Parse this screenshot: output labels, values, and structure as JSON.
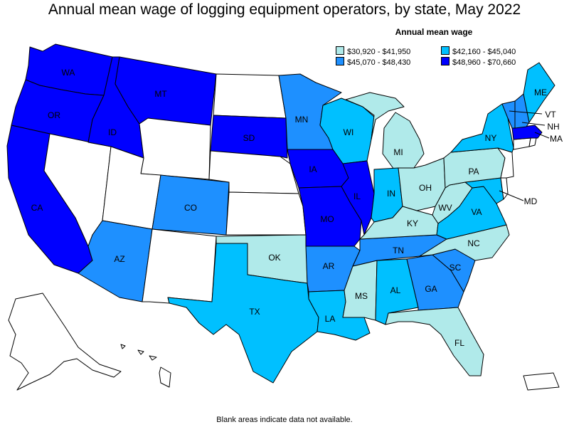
{
  "title": "Annual mean wage of logging equipment operators, by state, May 2022",
  "legend": {
    "title": "Annual mean wage",
    "items": [
      {
        "label": "$30,920 - $41,950",
        "color": "#b0eaea"
      },
      {
        "label": "$42,160 - $45,040",
        "color": "#00c0ff"
      },
      {
        "label": "$45,070 - $48,430",
        "color": "#1e90ff"
      },
      {
        "label": "$48,960 - $70,660",
        "color": "#0000ff"
      }
    ]
  },
  "footnote": "Blank areas indicate data not available.",
  "states": {
    "WA": {
      "label": "WA",
      "tier": 3
    },
    "OR": {
      "label": "OR",
      "tier": 3
    },
    "CA": {
      "label": "CA",
      "tier": 3
    },
    "ID": {
      "label": "ID",
      "tier": 3
    },
    "MT": {
      "label": "MT",
      "tier": 3
    },
    "SD": {
      "label": "SD",
      "tier": 3
    },
    "IA": {
      "label": "IA",
      "tier": 3
    },
    "MO": {
      "label": "MO",
      "tier": 3
    },
    "IL": {
      "label": "IL",
      "tier": 3
    },
    "MA": {
      "label": "MA",
      "tier": 3
    },
    "CO": {
      "label": "CO",
      "tier": 2
    },
    "AZ": {
      "label": "AZ",
      "tier": 2
    },
    "MN": {
      "label": "MN",
      "tier": 2
    },
    "AR": {
      "label": "AR",
      "tier": 2
    },
    "TN": {
      "label": "TN",
      "tier": 2
    },
    "GA": {
      "label": "GA",
      "tier": 2
    },
    "SC": {
      "label": "SC",
      "tier": 2
    },
    "VT": {
      "label": "VT",
      "tier": 2
    },
    "NH": {
      "label": "NH",
      "tier": 2
    },
    "WI": {
      "label": "WI",
      "tier": 1
    },
    "IN": {
      "label": "IN",
      "tier": 1
    },
    "NY": {
      "label": "NY",
      "tier": 1
    },
    "VA": {
      "label": "VA",
      "tier": 1
    },
    "TX": {
      "label": "TX",
      "tier": 1
    },
    "LA": {
      "label": "LA",
      "tier": 1
    },
    "AL": {
      "label": "AL",
      "tier": 1
    },
    "ME": {
      "label": "ME",
      "tier": 1
    },
    "MD": {
      "label": "MD",
      "tier": 1
    },
    "MI": {
      "label": "MI",
      "tier": 0
    },
    "OH": {
      "label": "OH",
      "tier": 0
    },
    "KY": {
      "label": "KY",
      "tier": 0
    },
    "WV": {
      "label": "WV",
      "tier": 0
    },
    "PA": {
      "label": "PA",
      "tier": 0
    },
    "NC": {
      "label": "NC",
      "tier": 0
    },
    "MS": {
      "label": "MS",
      "tier": 0
    },
    "FL": {
      "label": "FL",
      "tier": 0
    },
    "OK": {
      "label": "OK",
      "tier": 0
    },
    "NV": {
      "label": "",
      "tier": -1
    },
    "UT": {
      "label": "",
      "tier": -1
    },
    "WY": {
      "label": "",
      "tier": -1
    },
    "NM": {
      "label": "",
      "tier": -1
    },
    "ND": {
      "label": "",
      "tier": -1
    },
    "NE": {
      "label": "",
      "tier": -1
    },
    "KS": {
      "label": "",
      "tier": -1
    },
    "NJ": {
      "label": "",
      "tier": -1
    },
    "DE": {
      "label": "",
      "tier": -1
    },
    "CT": {
      "label": "",
      "tier": -1
    },
    "RI": {
      "label": "",
      "tier": -1
    },
    "AK": {
      "label": "",
      "tier": -1
    },
    "HI": {
      "label": "",
      "tier": -1
    },
    "PR": {
      "label": "",
      "tier": -1
    }
  }
}
